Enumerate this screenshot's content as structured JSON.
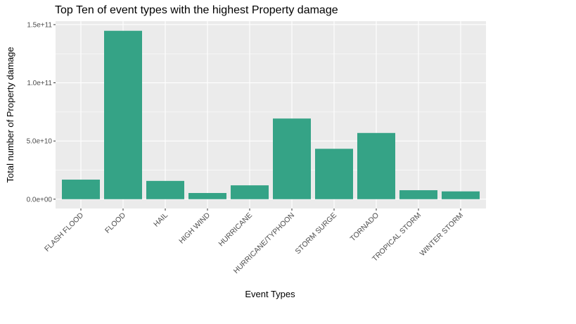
{
  "chart_data": {
    "type": "bar",
    "title": "Top Ten of event types with the highest Property damage",
    "xlabel": "Event Types",
    "ylabel": "Total number of Property damage",
    "categories": [
      "FLASH FLOOD",
      "FLOOD",
      "HAIL",
      "HIGH WIND",
      "HURRICANE",
      "HURRICANE/TYPHOON",
      "STORM SURGE",
      "TORNADO",
      "TROPICAL STORM",
      "WINTER STORM"
    ],
    "values": [
      16800000000,
      144700000000,
      15700000000,
      5300000000,
      11900000000,
      69300000000,
      43300000000,
      56900000000,
      7700000000,
      6700000000
    ],
    "ylim": [
      -8000000000,
      153000000000
    ],
    "y_ticks": [
      0,
      50000000000,
      100000000000,
      150000000000
    ],
    "y_tick_labels": [
      "0.0e+00",
      "5.0e+10",
      "1.0e+11",
      "1.5e+11"
    ],
    "grid": true,
    "bar_color": "#35A386",
    "panel_color": "#EBEBEB"
  }
}
